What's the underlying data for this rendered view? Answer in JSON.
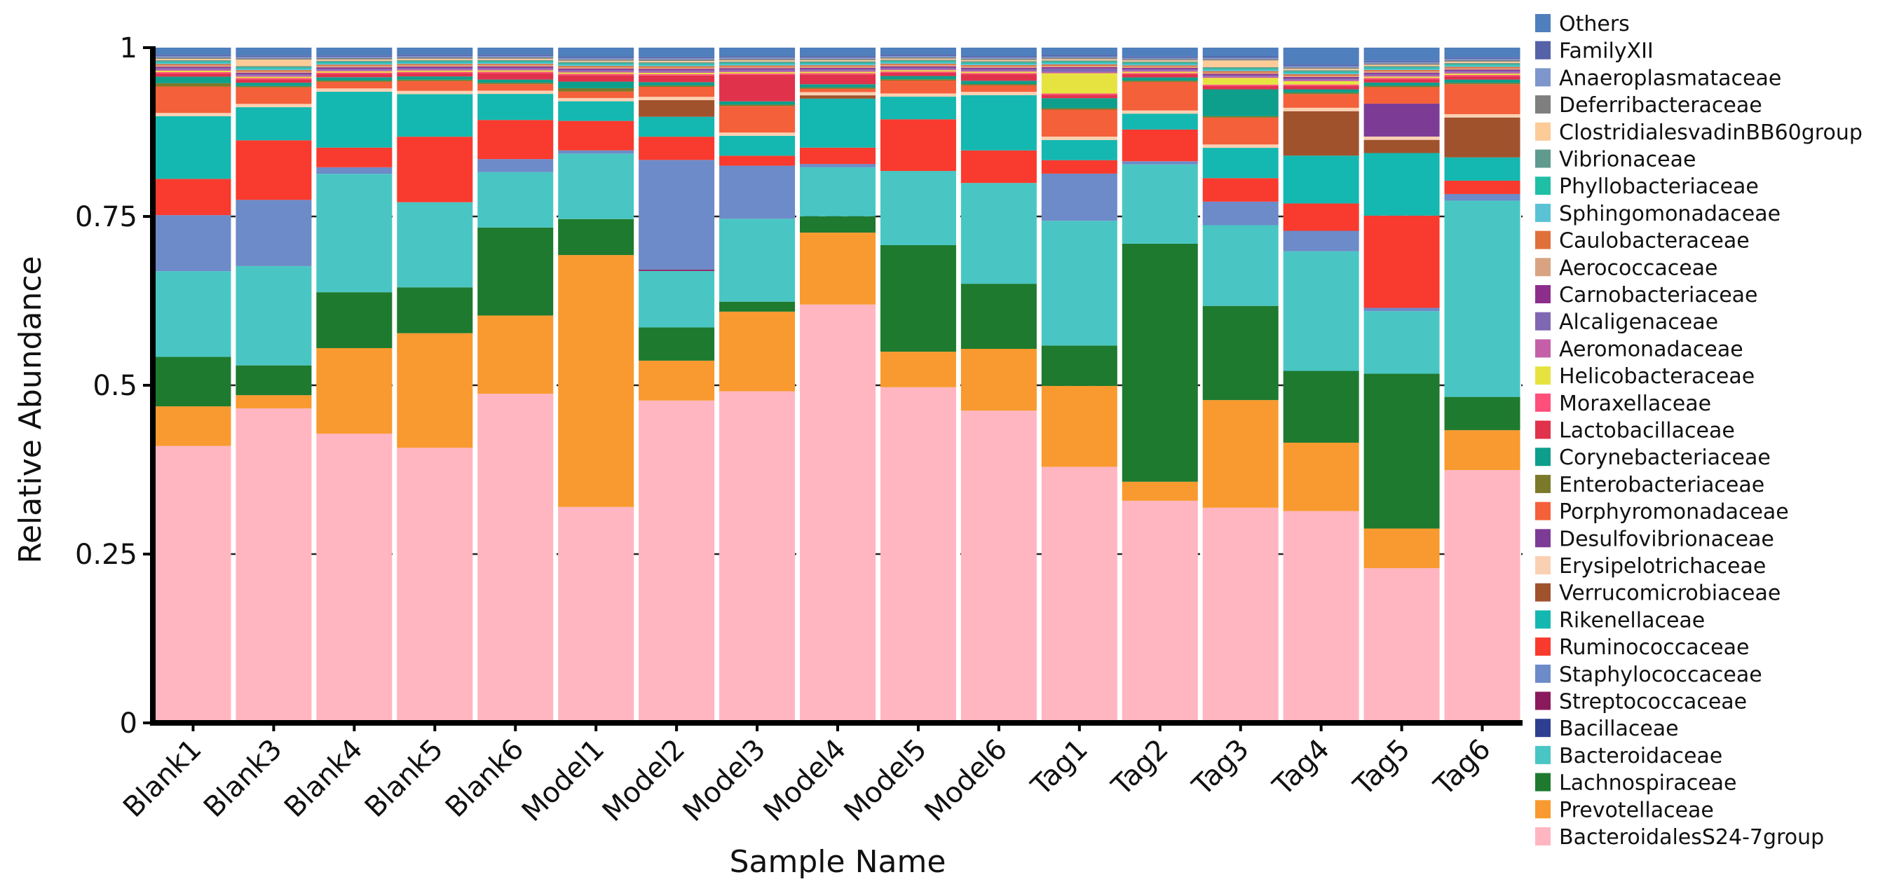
{
  "chart_data": {
    "type": "bar",
    "stacked": true,
    "title": "",
    "xlabel": "Sample Name",
    "ylabel": "Relative Abundance",
    "ylim": [
      0,
      1
    ],
    "yticks": [
      0,
      0.25,
      0.5,
      0.75,
      1
    ],
    "ytick_labels": [
      "0",
      "0.25",
      "0.5",
      "0.75",
      "1"
    ],
    "grid": "dashed horizontal at 0.25, 0.5, 0.75",
    "legend_position": "right",
    "categories": [
      "Blank1",
      "Blank3",
      "Blank4",
      "Blank5",
      "Blank6",
      "Model1",
      "Model2",
      "Model3",
      "Model4",
      "Model5",
      "Model6",
      "Tag1",
      "Tag2",
      "Tag3",
      "Tag4",
      "Tag5",
      "Tag6"
    ],
    "series": [
      {
        "name": "BacteroidalesS24-7group",
        "color": "#FFB6C1",
        "values": [
          0.42,
          0.475,
          0.44,
          0.42,
          0.505,
          0.33,
          0.485,
          0.5,
          0.64,
          0.52,
          0.48,
          0.38,
          0.35,
          0.32,
          0.31,
          0.235,
          0.38
        ]
      },
      {
        "name": "Prevotellaceae",
        "color": "#F89A2F",
        "values": [
          0.06,
          0.02,
          0.13,
          0.175,
          0.12,
          0.385,
          0.06,
          0.12,
          0.11,
          0.055,
          0.095,
          0.12,
          0.03,
          0.16,
          0.1,
          0.06,
          0.06
        ]
      },
      {
        "name": "Lachnospiraceae",
        "color": "#1E7A2E",
        "values": [
          0.075,
          0.045,
          0.085,
          0.07,
          0.135,
          0.055,
          0.05,
          0.015,
          0.025,
          0.165,
          0.1,
          0.06,
          0.375,
          0.14,
          0.105,
          0.235,
          0.05
        ]
      },
      {
        "name": "Bacteroidaceae",
        "color": "#49C6C4",
        "values": [
          0.13,
          0.15,
          0.18,
          0.13,
          0.085,
          0.1,
          0.085,
          0.125,
          0.075,
          0.115,
          0.155,
          0.185,
          0.125,
          0.12,
          0.175,
          0.095,
          0.295
        ]
      },
      {
        "name": "Bacillaceae",
        "color": "#2E3F92",
        "values": [
          0,
          0,
          0,
          0,
          0,
          0,
          0,
          0,
          0,
          0,
          0,
          0,
          0,
          0,
          0,
          0,
          0
        ]
      },
      {
        "name": "Streptococcaceae",
        "color": "#8B1A5C",
        "values": [
          0,
          0,
          0,
          0,
          0,
          0,
          0.002,
          0,
          0,
          0,
          0,
          0,
          0,
          0,
          0,
          0,
          0
        ]
      },
      {
        "name": "Staphylococcaceae",
        "color": "#6C8BC8",
        "values": [
          0.085,
          0.1,
          0.01,
          0,
          0.02,
          0.005,
          0.165,
          0.08,
          0.005,
          0,
          0,
          0.07,
          0.005,
          0.035,
          0.03,
          0.005,
          0.01
        ]
      },
      {
        "name": "Ruminococcaceae",
        "color": "#F93A2E",
        "values": [
          0.055,
          0.09,
          0.03,
          0.1,
          0.06,
          0.045,
          0.035,
          0.015,
          0.025,
          0.08,
          0.05,
          0.02,
          0.05,
          0.035,
          0.04,
          0.14,
          0.02
        ]
      },
      {
        "name": "Rikenellaceae",
        "color": "#14B8B0",
        "values": [
          0.095,
          0.05,
          0.085,
          0.065,
          0.04,
          0.03,
          0.03,
          0.03,
          0.075,
          0.035,
          0.085,
          0.03,
          0.025,
          0.045,
          0.07,
          0.095,
          0.035
        ]
      },
      {
        "name": "Verrucomicrobiaceae",
        "color": "#A0522D",
        "values": [
          0,
          0,
          0,
          0,
          0,
          0,
          0.025,
          0,
          0.005,
          0,
          0,
          0,
          0,
          0,
          0.065,
          0.02,
          0.06
        ]
      },
      {
        "name": "Erysipelotrichaceae",
        "color": "#FAD0B2",
        "values": [
          0.005,
          0.005,
          0.005,
          0.005,
          0.005,
          0.005,
          0.005,
          0.005,
          0.005,
          0.005,
          0.005,
          0.005,
          0.005,
          0.005,
          0.005,
          0.005,
          0.005
        ]
      },
      {
        "name": "Desulfovibrionaceae",
        "color": "#7C3C96",
        "values": [
          0,
          0,
          0,
          0,
          0,
          0,
          0,
          0,
          0,
          0,
          0,
          0,
          0,
          0,
          0,
          0.05,
          0
        ]
      },
      {
        "name": "Porphyromonadaceae",
        "color": "#F4603A",
        "values": [
          0.04,
          0.025,
          0.01,
          0.015,
          0.01,
          0.01,
          0.015,
          0.04,
          0.005,
          0.02,
          0.01,
          0.04,
          0.045,
          0.04,
          0.02,
          0.025,
          0.045
        ]
      },
      {
        "name": "Enterobacteriaceae",
        "color": "#7A7A2A",
        "values": [
          0.005,
          0.002,
          0.002,
          0.002,
          0.002,
          0.005,
          0.002,
          0.002,
          0.002,
          0.002,
          0.002,
          0.002,
          0.002,
          0.002,
          0.002,
          0.002,
          0.002
        ]
      },
      {
        "name": "Corynebacteriaceae",
        "color": "#0E9E8C",
        "values": [
          0.01,
          0.005,
          0.005,
          0.005,
          0.005,
          0.01,
          0.005,
          0.005,
          0.005,
          0.005,
          0.005,
          0.015,
          0.005,
          0.04,
          0.005,
          0.005,
          0.005
        ]
      },
      {
        "name": "Lactobacillaceae",
        "color": "#E1324C",
        "values": [
          0.005,
          0.005,
          0.005,
          0.005,
          0.01,
          0.01,
          0.01,
          0.04,
          0.015,
          0.005,
          0.01,
          0.005,
          0.005,
          0.005,
          0.005,
          0.005,
          0.005
        ]
      },
      {
        "name": "Moraxellaceae",
        "color": "#FF4F7A",
        "values": [
          0.002,
          0.002,
          0.002,
          0.002,
          0.002,
          0.002,
          0.002,
          0.002,
          0.002,
          0.002,
          0.002,
          0.002,
          0.002,
          0.002,
          0.002,
          0.002,
          0.002
        ]
      },
      {
        "name": "Helicobacteraceae",
        "color": "#E6E340",
        "values": [
          0.002,
          0.002,
          0.002,
          0.002,
          0.002,
          0.002,
          0.002,
          0.002,
          0.002,
          0.002,
          0.002,
          0.03,
          0.002,
          0.01,
          0.005,
          0.002,
          0.002
        ]
      },
      {
        "name": "Aeromonadaceae",
        "color": "#C45FA8",
        "values": [
          0.002,
          0.002,
          0.002,
          0.002,
          0.002,
          0.002,
          0.002,
          0.002,
          0.002,
          0.002,
          0.002,
          0.002,
          0.002,
          0.002,
          0.002,
          0.002,
          0.002
        ]
      },
      {
        "name": "Alcaligenaceae",
        "color": "#7F67B2",
        "values": [
          0.002,
          0.002,
          0.002,
          0.002,
          0.002,
          0.002,
          0.002,
          0.002,
          0.002,
          0.002,
          0.002,
          0.005,
          0.002,
          0.002,
          0.002,
          0.002,
          0.002
        ]
      },
      {
        "name": "Carnobacteriaceae",
        "color": "#8E2E8C",
        "values": [
          0.002,
          0.002,
          0.002,
          0.002,
          0.002,
          0.002,
          0.002,
          0.002,
          0.002,
          0.002,
          0.002,
          0.002,
          0.002,
          0.002,
          0.002,
          0.002,
          0.002
        ]
      },
      {
        "name": "Aerococcaceae",
        "color": "#D9A382",
        "values": [
          0.002,
          0.002,
          0.002,
          0.002,
          0.002,
          0.002,
          0.002,
          0.002,
          0.002,
          0.002,
          0.002,
          0.002,
          0.002,
          0.002,
          0.002,
          0.002,
          0.002
        ]
      },
      {
        "name": "Caulobacteraceae",
        "color": "#E0703A",
        "values": [
          0.002,
          0.002,
          0.002,
          0.002,
          0.002,
          0.002,
          0.002,
          0.002,
          0.002,
          0.002,
          0.002,
          0.002,
          0.002,
          0.002,
          0.002,
          0.002,
          0.002
        ]
      },
      {
        "name": "Sphingomonadaceae",
        "color": "#5BC2D6",
        "values": [
          0.002,
          0.002,
          0.002,
          0.002,
          0.002,
          0.002,
          0.002,
          0.002,
          0.002,
          0.002,
          0.002,
          0.002,
          0.002,
          0.002,
          0.002,
          0.002,
          0.002
        ]
      },
      {
        "name": "Phyllobacteriaceae",
        "color": "#1FBFA6",
        "values": [
          0.002,
          0.002,
          0.002,
          0.002,
          0.002,
          0.002,
          0.002,
          0.002,
          0.002,
          0.002,
          0.002,
          0.002,
          0.002,
          0.002,
          0.002,
          0.002,
          0.002
        ]
      },
      {
        "name": "Vibrionaceae",
        "color": "#5F9A8E",
        "values": [
          0.002,
          0.002,
          0.002,
          0.002,
          0.002,
          0.002,
          0.002,
          0.002,
          0.002,
          0.002,
          0.002,
          0.002,
          0.002,
          0.002,
          0.002,
          0.002,
          0.002
        ]
      },
      {
        "name": "ClostridialesvadinBB60group",
        "color": "#FCCB98",
        "values": [
          0.002,
          0.01,
          0.002,
          0.002,
          0.002,
          0.002,
          0.002,
          0.002,
          0.002,
          0.002,
          0.002,
          0.002,
          0.002,
          0.01,
          0.002,
          0.002,
          0.002
        ]
      },
      {
        "name": "Deferribacteraceae",
        "color": "#7F7F7F",
        "values": [
          0.002,
          0.002,
          0.002,
          0.002,
          0.002,
          0.002,
          0.002,
          0.002,
          0.002,
          0.002,
          0.002,
          0.002,
          0.002,
          0.002,
          0.002,
          0.002,
          0.002
        ]
      },
      {
        "name": "Anaeroplasmataceae",
        "color": "#7E96CC",
        "values": [
          0.002,
          0.002,
          0.002,
          0.002,
          0.002,
          0.002,
          0.002,
          0.002,
          0.002,
          0.002,
          0.002,
          0.002,
          0.002,
          0.002,
          0.002,
          0.002,
          0.002
        ]
      },
      {
        "name": "FamilyXII",
        "color": "#5562A8",
        "values": [
          0.002,
          0.002,
          0.002,
          0.002,
          0.002,
          0.002,
          0.002,
          0.002,
          0.002,
          0.002,
          0.002,
          0.002,
          0.002,
          0.002,
          0.002,
          0.002,
          0.002
        ]
      },
      {
        "name": "Others",
        "color": "#4F7FBC",
        "values": [
          0.011,
          0.012,
          0.012,
          0.011,
          0.011,
          0.014,
          0.014,
          0.013,
          0.013,
          0.011,
          0.013,
          0.011,
          0.014,
          0.013,
          0.025,
          0.02,
          0.015
        ]
      }
    ]
  }
}
